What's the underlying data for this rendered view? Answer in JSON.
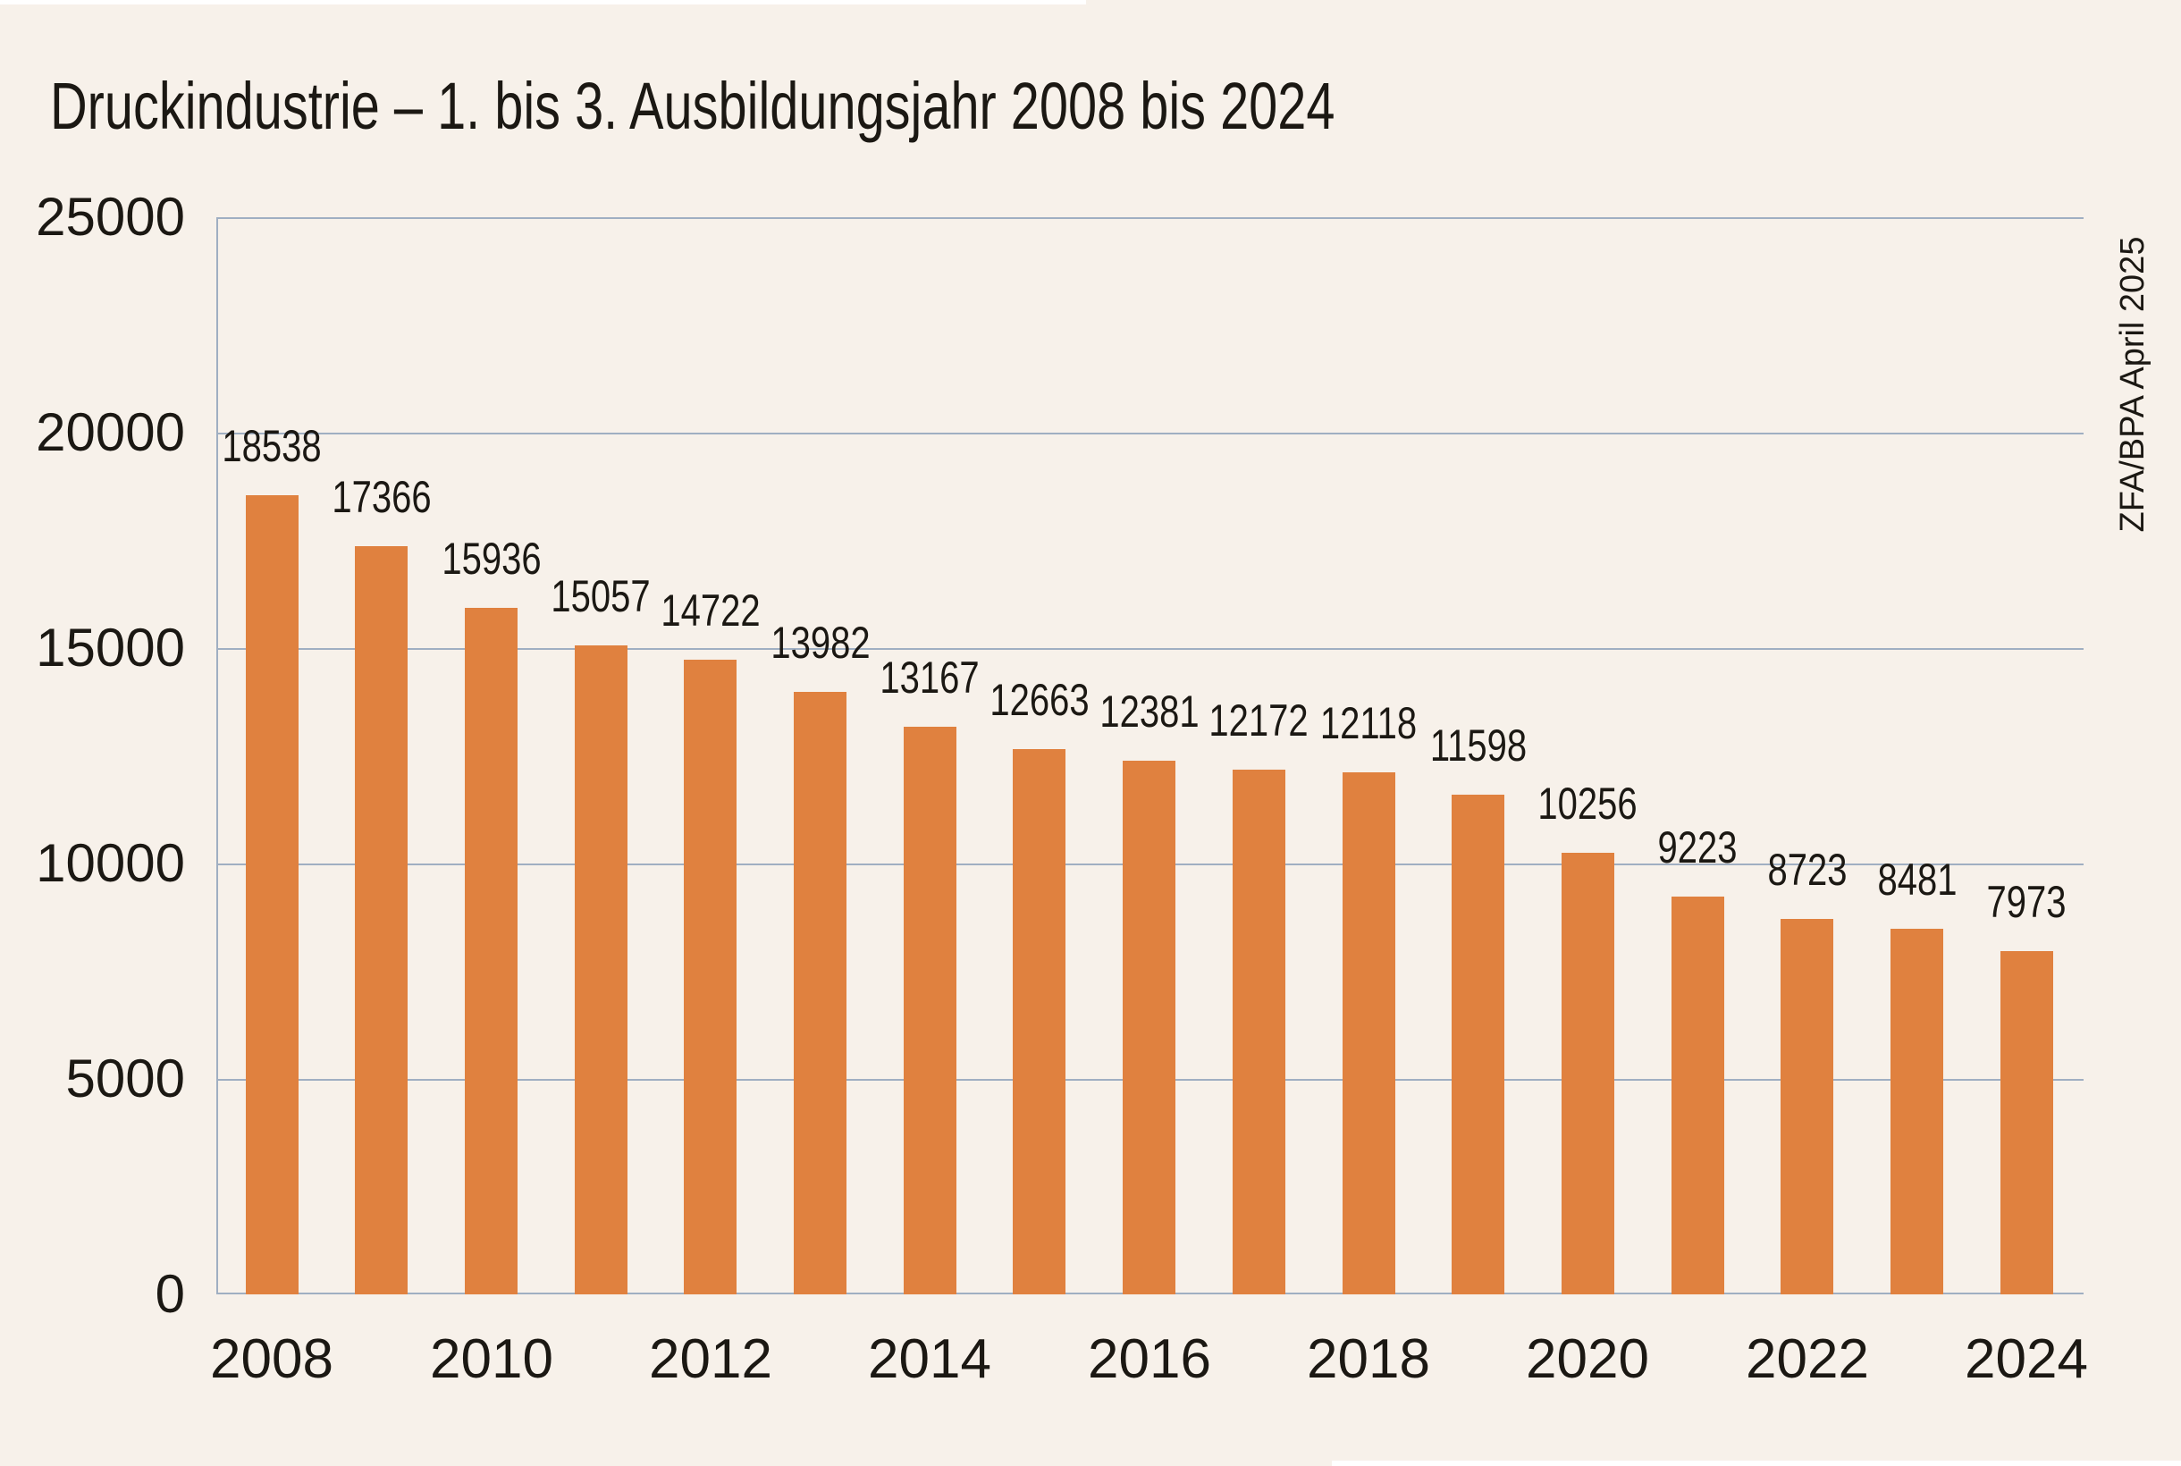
{
  "chart_data": {
    "type": "bar",
    "title": "Druckindustrie – 1. bis 3. Ausbildungsjahr 2008 bis 2024",
    "categories": [
      "2008",
      "2009",
      "2010",
      "2011",
      "2012",
      "2013",
      "2014",
      "2015",
      "2016",
      "2017",
      "2018",
      "2019",
      "2020",
      "2021",
      "2022",
      "2023",
      "2024"
    ],
    "values": [
      18538,
      17366,
      15936,
      15057,
      14722,
      13982,
      13167,
      12663,
      12381,
      12172,
      12118,
      11598,
      10256,
      9223,
      8723,
      8481,
      7973
    ],
    "data_labels": [
      "18538",
      "17366",
      "15936",
      "15057",
      "14722",
      "13982",
      "13167",
      "12663",
      "12381",
      "12172",
      "12118",
      "11598",
      "10256",
      "9223",
      "8723",
      "8481",
      "7973"
    ],
    "xlabel": "",
    "ylabel": "",
    "ylim": [
      0,
      25000
    ],
    "ytick_interval": 5000,
    "yticks": [
      "25000",
      "20000",
      "15000",
      "10000",
      "5000",
      "0"
    ],
    "xticks": [
      "2008",
      "2010",
      "2012",
      "2014",
      "2016",
      "2018",
      "2020",
      "2022",
      "2024"
    ],
    "grid": "horizontal",
    "legend": "none",
    "annotation": "ZFA/BPA April 2025",
    "colors": {
      "bar": "#e0813f",
      "grid": "#a0afc2",
      "text": "#1b1813",
      "background": "#f7f1ea"
    }
  }
}
